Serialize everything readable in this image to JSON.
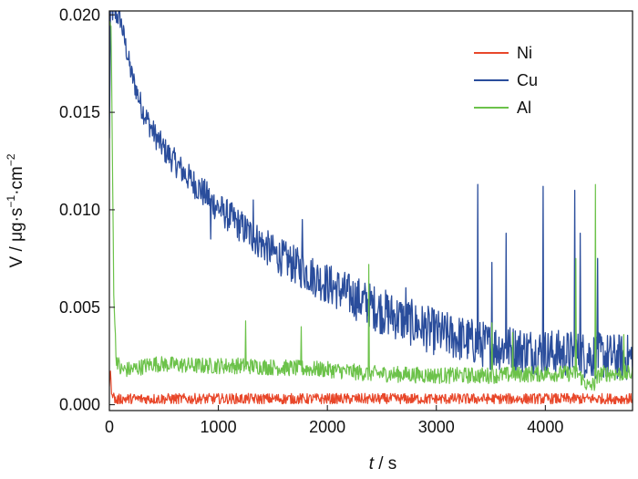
{
  "chart_data": {
    "type": "line",
    "xlabel_italic": "t",
    "xlabel_rest": " / s",
    "ylabel_main": "V / μg·s",
    "ylabel_exp1": "−1",
    "ylabel_mid": "·cm",
    "ylabel_exp2": "−2",
    "xlim": [
      0,
      4800
    ],
    "ylim": [
      -0.0003,
      0.0202
    ],
    "x_ticks": [
      0,
      1000,
      2000,
      3000,
      4000
    ],
    "x_tick_labels": [
      "0",
      "1000",
      "2000",
      "3000",
      "4000"
    ],
    "y_ticks": [
      0.0,
      0.005,
      0.01,
      0.015,
      0.02
    ],
    "y_tick_labels": [
      "0.000",
      "0.005",
      "0.010",
      "0.015",
      "0.020"
    ],
    "grid": false,
    "legend_position": "top-right",
    "series": [
      {
        "name": "Ni",
        "color": "#e8472a",
        "points": [
          [
            0,
            0.0012
          ],
          [
            10,
            0.0015
          ],
          [
            20,
            0.0008
          ],
          [
            40,
            0.0004
          ],
          [
            60,
            0.0002
          ],
          [
            100,
            0.0003
          ],
          [
            500,
            0.0003
          ],
          [
            1000,
            0.0003
          ],
          [
            2000,
            0.0003
          ],
          [
            3000,
            0.0003
          ],
          [
            4000,
            0.0003
          ],
          [
            4800,
            0.0003
          ]
        ]
      },
      {
        "name": "Cu",
        "color": "#2a4d9c",
        "points": [
          [
            0,
            0.0135
          ],
          [
            10,
            0.0202
          ],
          [
            100,
            0.0198
          ],
          [
            200,
            0.017
          ],
          [
            300,
            0.0152
          ],
          [
            400,
            0.014
          ],
          [
            500,
            0.0131
          ],
          [
            700,
            0.0118
          ],
          [
            1000,
            0.0101
          ],
          [
            1500,
            0.0078
          ],
          [
            2000,
            0.0062
          ],
          [
            2500,
            0.0048
          ],
          [
            3000,
            0.0037
          ],
          [
            3500,
            0.003
          ],
          [
            4000,
            0.0027
          ],
          [
            4500,
            0.0025
          ],
          [
            4800,
            0.0024
          ]
        ],
        "spikes": [
          [
            930,
            0.0085
          ],
          [
            1050,
            0.0103
          ],
          [
            1320,
            0.0105
          ],
          [
            1770,
            0.0095
          ],
          [
            2720,
            0.006
          ],
          [
            3380,
            0.0113
          ],
          [
            3510,
            0.0073
          ],
          [
            3640,
            0.0088
          ],
          [
            3980,
            0.0112
          ],
          [
            4270,
            0.011
          ],
          [
            4320,
            0.0088
          ],
          [
            4480,
            0.0075
          ]
        ]
      },
      {
        "name": "Al",
        "color": "#6cc24a",
        "points": [
          [
            0,
            0.0195
          ],
          [
            15,
            0.0195
          ],
          [
            40,
            0.006
          ],
          [
            60,
            0.0025
          ],
          [
            100,
            0.0018
          ],
          [
            200,
            0.0018
          ],
          [
            400,
            0.0021
          ],
          [
            800,
            0.002
          ],
          [
            1200,
            0.002
          ],
          [
            1600,
            0.0019
          ],
          [
            2000,
            0.0018
          ],
          [
            2400,
            0.0016
          ],
          [
            3000,
            0.0015
          ],
          [
            3500,
            0.0015
          ],
          [
            4000,
            0.0016
          ],
          [
            4300,
            0.0016
          ],
          [
            4400,
            0.0009
          ],
          [
            4460,
            0.0011
          ],
          [
            4500,
            0.0016
          ],
          [
            4800,
            0.0016
          ]
        ],
        "spikes": [
          [
            1250,
            0.0043
          ],
          [
            1760,
            0.004
          ],
          [
            2380,
            0.0072
          ],
          [
            3510,
            0.0042
          ],
          [
            3700,
            0.0037
          ],
          [
            4280,
            0.0075
          ],
          [
            4460,
            0.0113
          ],
          [
            4720,
            0.0036
          ]
        ]
      }
    ]
  }
}
